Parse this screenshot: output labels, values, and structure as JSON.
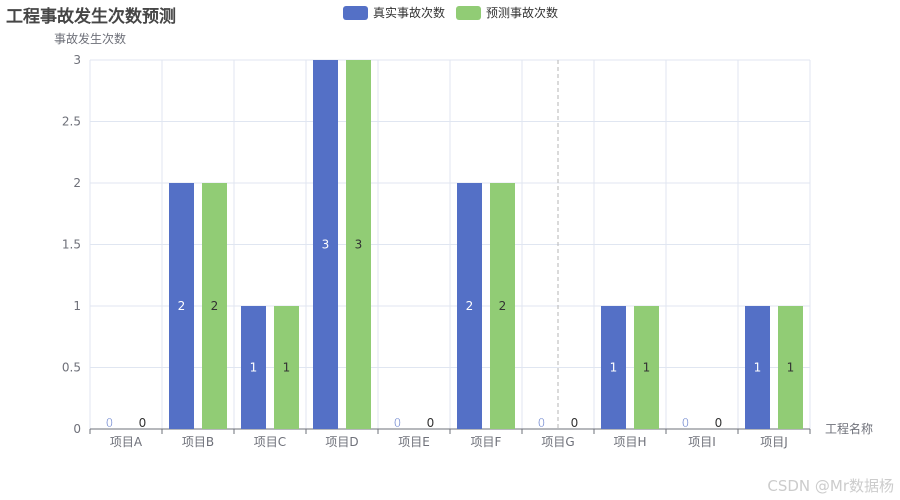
{
  "title": "工程事故发生次数预测",
  "watermark": "CSDN @Mr数据杨",
  "legend": [
    {
      "label": "真实事故次数",
      "color": "#5470c6"
    },
    {
      "label": "预测事故次数",
      "color": "#91cc75"
    }
  ],
  "chart_data": {
    "type": "bar",
    "categories": [
      "项目A",
      "项目B",
      "项目C",
      "项目D",
      "项目E",
      "项目F",
      "项目G",
      "项目H",
      "项目I",
      "项目J"
    ],
    "series": [
      {
        "name": "真实事故次数",
        "values": [
          0,
          2,
          1,
          3,
          0,
          2,
          0,
          1,
          0,
          1
        ],
        "color": "#5470c6"
      },
      {
        "name": "预测事故次数",
        "values": [
          0,
          2,
          1,
          3,
          0,
          2,
          0,
          1,
          0,
          1
        ],
        "color": "#91cc75"
      }
    ],
    "xlabel": "工程名称",
    "ylabel": "事故发生次数",
    "ylim": [
      0,
      3
    ],
    "yticks": [
      "0",
      "0.5",
      "1",
      "1.5",
      "2",
      "2.5",
      "3"
    ],
    "ytick_values": [
      0,
      0.5,
      1,
      1.5,
      2,
      2.5,
      3
    ],
    "grid": true,
    "legend_position": "top-center",
    "data_labels": true
  }
}
